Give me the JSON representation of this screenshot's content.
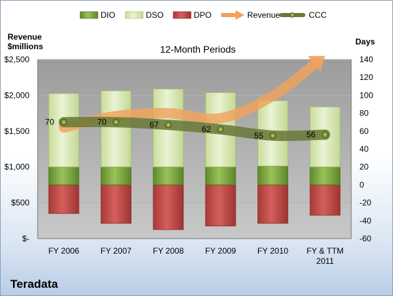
{
  "company": "Teradata",
  "chart_data": {
    "type": "bar",
    "title": "12-Month Periods",
    "left_axis_label": [
      "Revenue",
      "$millions"
    ],
    "right_axis_label": "Days",
    "categories": [
      "FY 2006",
      "FY 2007",
      "FY 2008",
      "FY 2009",
      "FY 2010",
      "FY & TTM 2011"
    ],
    "left_axis": {
      "min": 0,
      "max": 2500,
      "step": 500,
      "tick_labels": [
        "$-",
        "$500",
        "$1,000",
        "$1,500",
        "$2,000",
        "$2,500"
      ]
    },
    "right_axis": {
      "min": -60,
      "max": 140,
      "step": 20,
      "tick_labels": [
        "-60",
        "-40",
        "-20",
        "0",
        "20",
        "40",
        "60",
        "80",
        "100",
        "120",
        "140"
      ]
    },
    "series": [
      {
        "name": "DIO",
        "kind": "stacked-bar-positive",
        "color": "#7ea23a",
        "values": [
          20,
          20,
          20,
          20,
          21,
          20
        ]
      },
      {
        "name": "DSO",
        "kind": "stacked-bar-positive",
        "color": "#d6e7b4",
        "values": [
          82,
          85,
          87,
          83,
          73,
          67
        ]
      },
      {
        "name": "DPO",
        "kind": "bar-negative",
        "color": "#c0504d",
        "values": [
          -32,
          -43,
          -50,
          -46,
          -43,
          -34
        ]
      },
      {
        "name": "Revenue",
        "kind": "arrow-line",
        "color": "#f0a25c",
        "values": [
          1550,
          1710,
          1750,
          1680,
          1990,
          2550
        ]
      },
      {
        "name": "CCC",
        "kind": "line",
        "color": "#6b7a3a",
        "values": [
          70,
          70,
          67,
          62,
          55,
          56
        ],
        "data_labels": [
          "70",
          "70",
          "67",
          "62",
          "55",
          "56"
        ]
      }
    ],
    "legend_position": "top",
    "grid": "horizontal"
  }
}
